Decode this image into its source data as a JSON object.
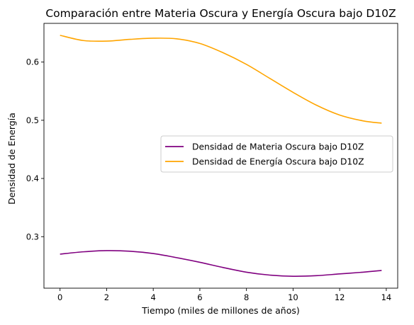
{
  "chart_data": {
    "type": "line",
    "title": "Comparación entre Materia Oscura y Energía Oscura bajo D10Z",
    "xlabel": "Tiempo (miles de millones de años)",
    "ylabel": "Densidad de Energía",
    "xlim": [
      -0.69,
      14.49
    ],
    "ylim": [
      0.2115,
      0.6665
    ],
    "x_ticks": [
      0,
      2,
      4,
      6,
      8,
      10,
      12,
      14
    ],
    "y_ticks": [
      0.3,
      0.4,
      0.5,
      0.6
    ],
    "x_tick_labels": [
      "0",
      "2",
      "4",
      "6",
      "8",
      "10",
      "12",
      "14"
    ],
    "y_tick_labels": [
      "0.3",
      "0.4",
      "0.5",
      "0.6"
    ],
    "grid": false,
    "legend_position": "center-right",
    "series": [
      {
        "name": "Densidad de Materia Oscura bajo D10Z",
        "color": "#800080",
        "x": [
          0,
          1,
          2,
          3,
          4,
          5,
          6,
          7,
          8,
          9,
          10,
          11,
          12,
          13,
          13.8
        ],
        "y": [
          0.27,
          0.274,
          0.276,
          0.275,
          0.271,
          0.264,
          0.256,
          0.247,
          0.239,
          0.234,
          0.232,
          0.233,
          0.236,
          0.239,
          0.242
        ]
      },
      {
        "name": "Densidad de Energía Oscura bajo D10Z",
        "color": "#ffa500",
        "x": [
          0,
          1,
          2,
          3,
          4,
          5,
          6,
          7,
          8,
          9,
          10,
          11,
          12,
          13,
          13.8
        ],
        "y": [
          0.646,
          0.637,
          0.636,
          0.639,
          0.641,
          0.64,
          0.632,
          0.616,
          0.596,
          0.572,
          0.548,
          0.526,
          0.509,
          0.499,
          0.495
        ]
      }
    ]
  }
}
